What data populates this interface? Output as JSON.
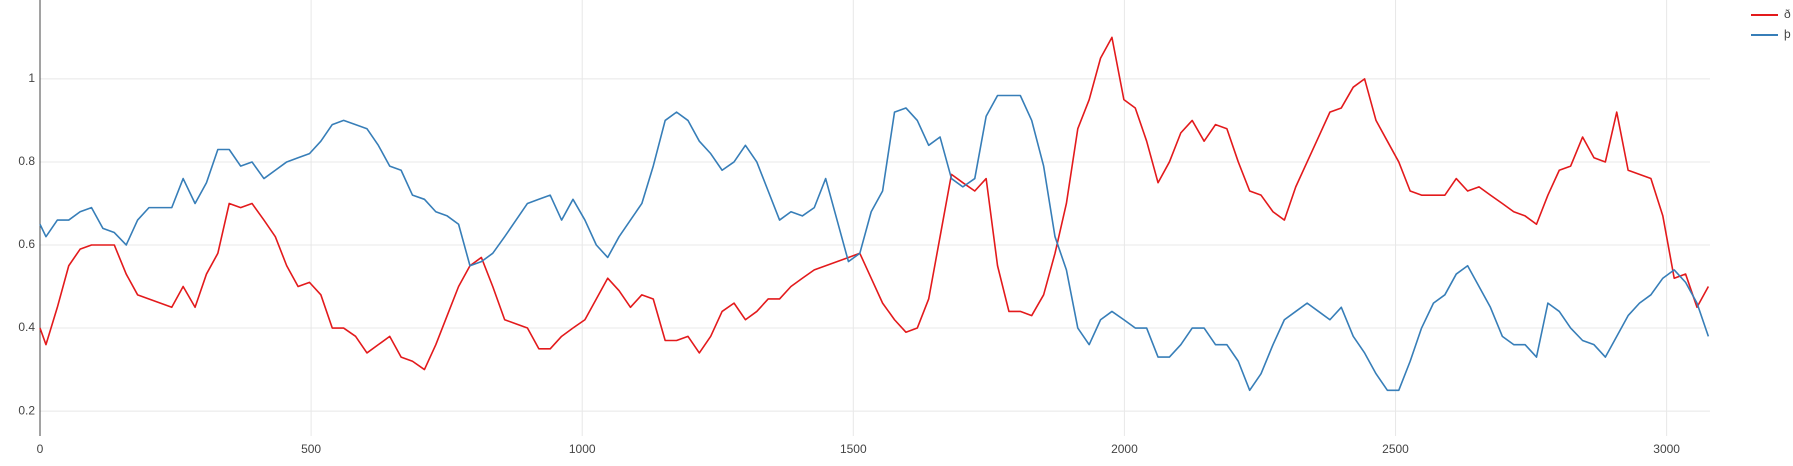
{
  "chart_data": {
    "type": "line",
    "x": [
      0,
      11,
      32,
      53,
      74,
      95,
      116,
      137,
      159,
      180,
      201,
      222,
      243,
      264,
      286,
      307,
      328,
      349,
      370,
      391,
      413,
      434,
      455,
      476,
      497,
      518,
      539,
      560,
      582,
      603,
      624,
      645,
      666,
      687,
      709,
      730,
      751,
      772,
      793,
      814,
      835,
      857,
      878,
      899,
      920,
      941,
      962,
      983,
      1005,
      1026,
      1047,
      1068,
      1089,
      1110,
      1131,
      1153,
      1174,
      1195,
      1216,
      1237,
      1258,
      1280,
      1301,
      1322,
      1343,
      1364,
      1385,
      1406,
      1428,
      1449,
      1470,
      1491,
      1512,
      1533,
      1554,
      1576,
      1597,
      1618,
      1639,
      1660,
      1681,
      1702,
      1724,
      1745,
      1766,
      1787,
      1808,
      1829,
      1851,
      1872,
      1893,
      1914,
      1935,
      1956,
      1977,
      1999,
      2020,
      2041,
      2062,
      2083,
      2104,
      2125,
      2147,
      2168,
      2189,
      2210,
      2231,
      2252,
      2274,
      2295,
      2316,
      2337,
      2358,
      2379,
      2400,
      2422,
      2443,
      2464,
      2485,
      2506,
      2527,
      2548,
      2570,
      2591,
      2612,
      2633,
      2654,
      2675,
      2697,
      2718,
      2739,
      2760,
      2781,
      2802,
      2823,
      2845,
      2866,
      2887,
      2908,
      2929,
      2950,
      2971,
      2993,
      3014,
      3035,
      3056,
      3077
    ],
    "series": [
      {
        "name": "ð",
        "color": "#e31a1c",
        "values": [
          0.4,
          0.36,
          0.45,
          0.55,
          0.59,
          0.6,
          0.6,
          0.6,
          0.53,
          0.48,
          0.47,
          0.46,
          0.45,
          0.5,
          0.45,
          0.53,
          0.58,
          0.7,
          0.69,
          0.7,
          0.66,
          0.62,
          0.55,
          0.5,
          0.51,
          0.48,
          0.4,
          0.4,
          0.38,
          0.34,
          0.36,
          0.38,
          0.33,
          0.32,
          0.3,
          0.36,
          0.43,
          0.5,
          0.55,
          0.57,
          0.5,
          0.42,
          0.41,
          0.4,
          0.35,
          0.35,
          0.38,
          0.4,
          0.42,
          0.47,
          0.52,
          0.49,
          0.45,
          0.48,
          0.47,
          0.37,
          0.37,
          0.38,
          0.34,
          0.38,
          0.44,
          0.46,
          0.42,
          0.44,
          0.47,
          0.47,
          0.5,
          0.52,
          0.54,
          0.55,
          0.56,
          0.57,
          0.58,
          0.52,
          0.46,
          0.42,
          0.39,
          0.4,
          0.47,
          0.62,
          0.77,
          0.75,
          0.73,
          0.76,
          0.55,
          0.44,
          0.44,
          0.43,
          0.48,
          0.58,
          0.7,
          0.88,
          0.95,
          1.05,
          1.1,
          0.95,
          0.93,
          0.85,
          0.75,
          0.8,
          0.87,
          0.9,
          0.85,
          0.89,
          0.88,
          0.8,
          0.73,
          0.72,
          0.68,
          0.66,
          0.74,
          0.8,
          0.86,
          0.92,
          0.93,
          0.98,
          1.0,
          0.9,
          0.85,
          0.8,
          0.73,
          0.72,
          0.72,
          0.72,
          0.76,
          0.73,
          0.74,
          0.72,
          0.7,
          0.68,
          0.67,
          0.65,
          0.72,
          0.78,
          0.79,
          0.86,
          0.81,
          0.8,
          0.92,
          0.78,
          0.77,
          0.76,
          0.67,
          0.52,
          0.53,
          0.45,
          0.5
        ]
      },
      {
        "name": "þ",
        "color": "#377eb8",
        "values": [
          0.65,
          0.62,
          0.66,
          0.66,
          0.68,
          0.69,
          0.64,
          0.63,
          0.6,
          0.66,
          0.69,
          0.69,
          0.69,
          0.76,
          0.7,
          0.75,
          0.83,
          0.83,
          0.79,
          0.8,
          0.76,
          0.78,
          0.8,
          0.81,
          0.82,
          0.85,
          0.89,
          0.9,
          0.89,
          0.88,
          0.84,
          0.79,
          0.78,
          0.72,
          0.71,
          0.68,
          0.67,
          0.65,
          0.55,
          0.56,
          0.58,
          0.62,
          0.66,
          0.7,
          0.71,
          0.72,
          0.66,
          0.71,
          0.66,
          0.6,
          0.57,
          0.62,
          0.66,
          0.7,
          0.79,
          0.9,
          0.92,
          0.9,
          0.85,
          0.82,
          0.78,
          0.8,
          0.84,
          0.8,
          0.73,
          0.66,
          0.68,
          0.67,
          0.69,
          0.76,
          0.66,
          0.56,
          0.58,
          0.68,
          0.73,
          0.92,
          0.93,
          0.9,
          0.84,
          0.86,
          0.76,
          0.74,
          0.76,
          0.91,
          0.96,
          0.96,
          0.96,
          0.9,
          0.79,
          0.62,
          0.54,
          0.4,
          0.36,
          0.42,
          0.44,
          0.42,
          0.4,
          0.4,
          0.33,
          0.33,
          0.36,
          0.4,
          0.4,
          0.36,
          0.36,
          0.32,
          0.25,
          0.29,
          0.36,
          0.42,
          0.44,
          0.46,
          0.44,
          0.42,
          0.45,
          0.38,
          0.34,
          0.29,
          0.25,
          0.25,
          0.32,
          0.4,
          0.46,
          0.48,
          0.53,
          0.55,
          0.5,
          0.45,
          0.38,
          0.36,
          0.36,
          0.33,
          0.46,
          0.44,
          0.4,
          0.37,
          0.36,
          0.33,
          0.38,
          0.43,
          0.46,
          0.48,
          0.52,
          0.54,
          0.51,
          0.46,
          0.38
        ]
      }
    ],
    "xlim": [
      0,
      3080
    ],
    "xticks": [
      0,
      500,
      1000,
      1500,
      2000,
      2500,
      3000
    ],
    "ylim": [
      0.14,
      1.19
    ],
    "yticks": [
      0.2,
      0.4,
      0.6,
      0.8,
      1
    ],
    "grid": true,
    "legend": "top-right"
  }
}
